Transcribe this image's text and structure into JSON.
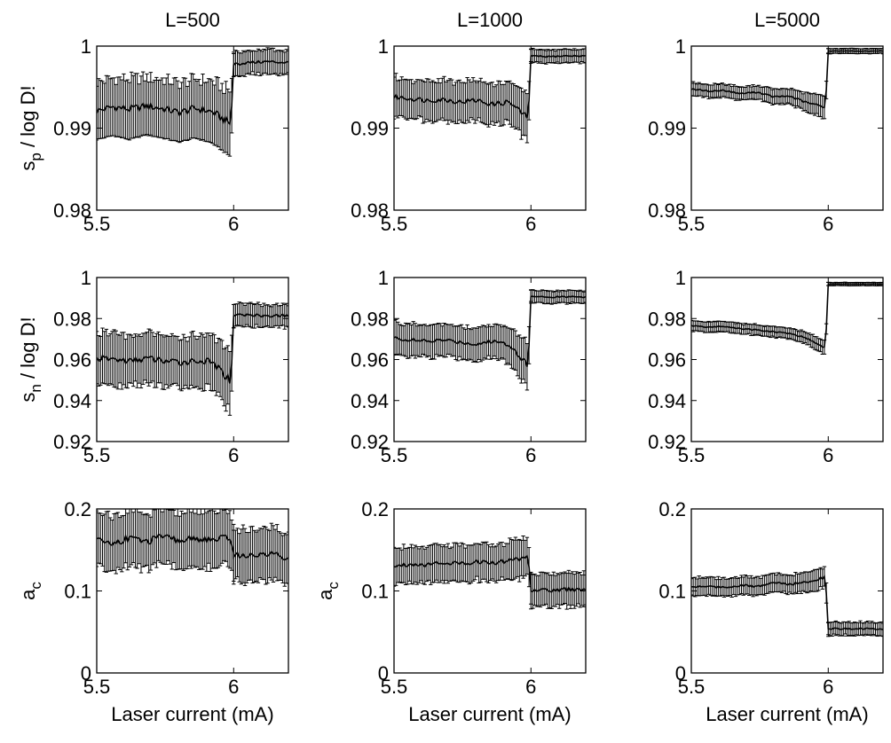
{
  "chart_data": [
    {
      "type": "line",
      "column_title": "L=500",
      "ylabel": "s_p / log D!",
      "xlim": [
        5.5,
        6.2
      ],
      "ylim": [
        0.98,
        1.0
      ],
      "x_ticks": [
        "5.5",
        "6"
      ],
      "y_ticks": [
        "0.98",
        "0.99",
        "1"
      ],
      "series": [
        {
          "x": [
            5.5,
            5.56,
            5.62,
            5.68,
            5.74,
            5.8,
            5.86,
            5.92,
            5.99,
            6.0,
            6.06,
            6.12,
            6.2
          ],
          "y": [
            0.9921,
            0.9926,
            0.9923,
            0.9927,
            0.9924,
            0.9919,
            0.9924,
            0.992,
            0.9905,
            0.9978,
            0.998,
            0.9981,
            0.998
          ],
          "err": [
            0.0035,
            0.0035,
            0.0037,
            0.0035,
            0.0036,
            0.0036,
            0.0036,
            0.0038,
            0.004,
            0.0015,
            0.0014,
            0.0015,
            0.0014
          ]
        }
      ]
    },
    {
      "type": "line",
      "column_title": "L=1000",
      "xlim": [
        5.5,
        6.2
      ],
      "ylim": [
        0.98,
        1.0
      ],
      "x_ticks": [
        "5.5",
        "6"
      ],
      "y_ticks": [
        "0.98",
        "0.99",
        "1"
      ],
      "series": [
        {
          "x": [
            5.5,
            5.56,
            5.62,
            5.68,
            5.74,
            5.8,
            5.86,
            5.92,
            5.99,
            6.0,
            6.06,
            6.12,
            6.2
          ],
          "y": [
            0.9938,
            0.9936,
            0.9934,
            0.9935,
            0.9932,
            0.9934,
            0.9929,
            0.9932,
            0.9912,
            0.9988,
            0.9987,
            0.9988,
            0.9988
          ],
          "err": [
            0.0024,
            0.0023,
            0.0024,
            0.0025,
            0.0024,
            0.0024,
            0.0025,
            0.0026,
            0.003,
            0.0008,
            0.0008,
            0.0008,
            0.0008
          ]
        }
      ]
    },
    {
      "type": "line",
      "column_title": "L=5000",
      "xlim": [
        5.5,
        6.2
      ],
      "ylim": [
        0.98,
        1.0
      ],
      "x_ticks": [
        "5.5",
        "6"
      ],
      "y_ticks": [
        "0.98",
        "0.99",
        "1"
      ],
      "series": [
        {
          "x": [
            5.5,
            5.56,
            5.62,
            5.68,
            5.74,
            5.8,
            5.86,
            5.92,
            5.99,
            6.0,
            6.06,
            6.12,
            6.2
          ],
          "y": [
            0.9948,
            0.9945,
            0.9946,
            0.9942,
            0.9944,
            0.9938,
            0.9939,
            0.9931,
            0.9926,
            0.9994,
            0.9994,
            0.9994,
            0.9994
          ],
          "err": [
            0.0008,
            0.0008,
            0.0008,
            0.0008,
            0.0008,
            0.0009,
            0.0009,
            0.0012,
            0.0013,
            0.0003,
            0.0003,
            0.0003,
            0.0003
          ]
        }
      ]
    },
    {
      "type": "line",
      "ylabel": "s_n / log D!",
      "xlim": [
        5.5,
        6.2
      ],
      "ylim": [
        0.92,
        1.0
      ],
      "x_ticks": [
        "5.5",
        "6"
      ],
      "y_ticks": [
        "0.92",
        "0.94",
        "0.96",
        "0.98",
        "1"
      ],
      "series": [
        {
          "x": [
            5.5,
            5.56,
            5.62,
            5.68,
            5.74,
            5.8,
            5.86,
            5.92,
            5.99,
            6.0,
            6.06,
            6.12,
            6.2
          ],
          "y": [
            0.9605,
            0.9602,
            0.9592,
            0.9606,
            0.9595,
            0.9585,
            0.9595,
            0.9588,
            0.9495,
            0.9815,
            0.9818,
            0.9812,
            0.9815
          ],
          "err": [
            0.0125,
            0.0128,
            0.0125,
            0.0127,
            0.0126,
            0.0125,
            0.0126,
            0.013,
            0.0155,
            0.0055,
            0.0055,
            0.0055,
            0.0055
          ]
        }
      ]
    },
    {
      "type": "line",
      "xlim": [
        5.5,
        6.2
      ],
      "ylim": [
        0.92,
        1.0
      ],
      "x_ticks": [
        "5.5",
        "6"
      ],
      "y_ticks": [
        "0.92",
        "0.94",
        "0.96",
        "0.98",
        "1"
      ],
      "series": [
        {
          "x": [
            5.5,
            5.56,
            5.62,
            5.68,
            5.74,
            5.8,
            5.86,
            5.92,
            5.99,
            6.0,
            6.06,
            6.12,
            6.2
          ],
          "y": [
            0.9705,
            0.9695,
            0.9688,
            0.9695,
            0.9685,
            0.9675,
            0.969,
            0.9675,
            0.957,
            0.9908,
            0.9905,
            0.9906,
            0.9905
          ],
          "err": [
            0.0078,
            0.0078,
            0.0078,
            0.0078,
            0.0079,
            0.008,
            0.0081,
            0.0085,
            0.011,
            0.003,
            0.003,
            0.003,
            0.003
          ]
        }
      ]
    },
    {
      "type": "line",
      "xlim": [
        5.5,
        6.2
      ],
      "ylim": [
        0.92,
        1.0
      ],
      "x_ticks": [
        "5.5",
        "6"
      ],
      "y_ticks": [
        "0.92",
        "0.94",
        "0.96",
        "0.98",
        "1"
      ],
      "series": [
        {
          "x": [
            5.5,
            5.56,
            5.62,
            5.68,
            5.74,
            5.8,
            5.86,
            5.92,
            5.99,
            6.0,
            6.06,
            6.12,
            6.2
          ],
          "y": [
            0.9765,
            0.9758,
            0.9762,
            0.975,
            0.9745,
            0.9735,
            0.9728,
            0.9705,
            0.9655,
            0.9968,
            0.9968,
            0.9968,
            0.9968
          ],
          "err": [
            0.0025,
            0.0025,
            0.0025,
            0.0025,
            0.0025,
            0.0025,
            0.0025,
            0.0028,
            0.0035,
            0.0008,
            0.0008,
            0.0008,
            0.0008
          ]
        }
      ]
    },
    {
      "type": "line",
      "ylabel": "a_c",
      "xlabel": "Laser current (mA)",
      "xlim": [
        5.5,
        6.2
      ],
      "ylim": [
        0,
        0.2
      ],
      "x_ticks": [
        "5.5",
        "6"
      ],
      "y_ticks": [
        "0",
        "0.1",
        "0.2"
      ],
      "series": [
        {
          "x": [
            5.5,
            5.56,
            5.62,
            5.68,
            5.74,
            5.8,
            5.86,
            5.92,
            5.99,
            6.0,
            6.06,
            6.12,
            6.2
          ],
          "y": [
            0.162,
            0.158,
            0.165,
            0.16,
            0.166,
            0.161,
            0.164,
            0.162,
            0.165,
            0.145,
            0.142,
            0.146,
            0.14
          ],
          "err": [
            0.033,
            0.034,
            0.034,
            0.034,
            0.034,
            0.034,
            0.034,
            0.034,
            0.034,
            0.032,
            0.032,
            0.032,
            0.031
          ]
        }
      ]
    },
    {
      "type": "line",
      "ylabel": "a_c",
      "xlabel": "Laser current (mA)",
      "xlim": [
        5.5,
        6.2
      ],
      "ylim": [
        0,
        0.2
      ],
      "x_ticks": [
        "5.5",
        "6"
      ],
      "y_ticks": [
        "0",
        "0.1",
        "0.2"
      ],
      "series": [
        {
          "x": [
            5.5,
            5.56,
            5.62,
            5.68,
            5.74,
            5.8,
            5.86,
            5.92,
            5.99,
            6.0,
            6.06,
            6.12,
            6.2
          ],
          "y": [
            0.13,
            0.133,
            0.132,
            0.135,
            0.133,
            0.136,
            0.134,
            0.137,
            0.142,
            0.102,
            0.1,
            0.102,
            0.1
          ],
          "err": [
            0.022,
            0.022,
            0.022,
            0.022,
            0.022,
            0.022,
            0.022,
            0.023,
            0.024,
            0.02,
            0.02,
            0.02,
            0.02
          ]
        }
      ]
    },
    {
      "type": "line",
      "xlabel": "Laser current (mA)",
      "xlim": [
        5.5,
        6.2
      ],
      "ylim": [
        0,
        0.2
      ],
      "x_ticks": [
        "5.5",
        "6"
      ],
      "y_ticks": [
        "0",
        "0.1",
        "0.2"
      ],
      "series": [
        {
          "x": [
            5.5,
            5.56,
            5.62,
            5.68,
            5.74,
            5.8,
            5.86,
            5.92,
            5.99,
            6.0,
            6.06,
            6.12,
            6.2
          ],
          "y": [
            0.105,
            0.106,
            0.104,
            0.107,
            0.105,
            0.11,
            0.108,
            0.111,
            0.117,
            0.054,
            0.054,
            0.054,
            0.053
          ],
          "err": [
            0.011,
            0.011,
            0.011,
            0.011,
            0.011,
            0.011,
            0.011,
            0.012,
            0.013,
            0.008,
            0.008,
            0.008,
            0.008
          ]
        }
      ]
    }
  ]
}
